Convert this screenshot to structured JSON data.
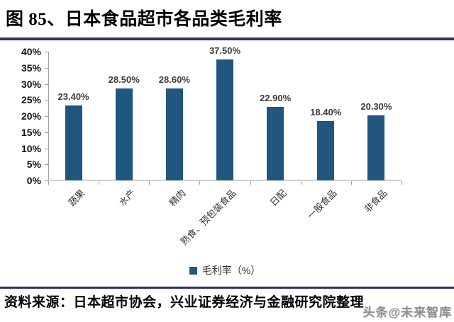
{
  "header": {
    "title": "图 85、日本食品超市各品类毛利率"
  },
  "footer": {
    "source": "资料来源：日本超市协会，兴业证券经济与金融研究院整理",
    "watermark": "头条@未来智库"
  },
  "colors": {
    "bar": "#21567E",
    "divider": "#2E3364",
    "axis": "#9B9B9B",
    "value_label": "#3B3B3B",
    "ytick_label": "#111111"
  },
  "chart_data": {
    "type": "bar",
    "title": "日本食品超市各品类毛利率",
    "categories": [
      "蔬果",
      "水产",
      "精肉",
      "熟食、预包装食品",
      "日配",
      "一般食品",
      "非食品"
    ],
    "values": [
      23.4,
      28.5,
      28.6,
      37.5,
      22.9,
      18.4,
      20.3
    ],
    "value_labels": [
      "23.40%",
      "28.50%",
      "28.60%",
      "37.50%",
      "22.90%",
      "18.40%",
      "20.30%"
    ],
    "xlabel": "",
    "ylabel": "",
    "ylim": [
      0,
      40
    ],
    "ytick_step": 5,
    "ytick_labels": [
      "0%",
      "5%",
      "10%",
      "15%",
      "20%",
      "25%",
      "30%",
      "35%",
      "40%"
    ],
    "grid": false,
    "legend": [
      {
        "label": "毛利率（%）",
        "color": "#21567E"
      }
    ],
    "legend_position": "bottom"
  }
}
